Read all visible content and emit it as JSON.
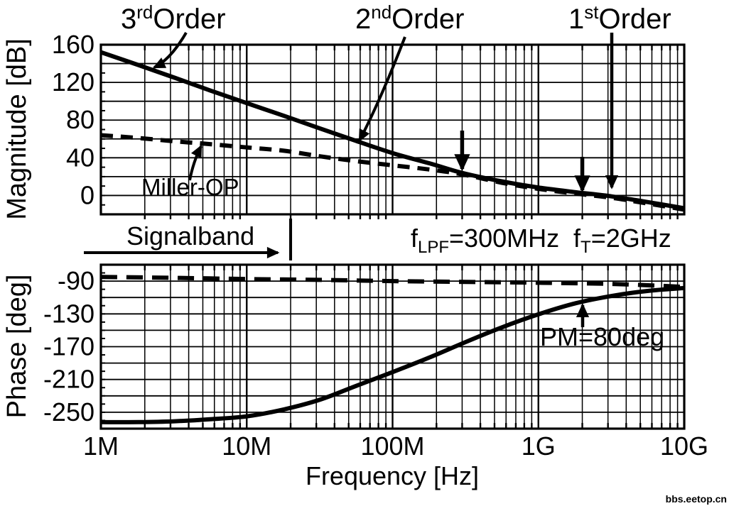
{
  "figure": {
    "background": "#ffffff",
    "ink_color": "#000000"
  },
  "chart_data": [
    {
      "type": "line",
      "name": "magnitude-plot",
      "ylabel": "Magnitude [dB]",
      "ylim": [
        -20,
        160
      ],
      "yticks": [
        160,
        120,
        80,
        40,
        0
      ],
      "y_minor_step": 20,
      "xscale": "log",
      "xlim_hz": [
        1000000.0,
        10000000000.0
      ],
      "grid": true,
      "series": [
        {
          "name": "3rd-order loop gain",
          "style": "solid",
          "points": [
            [
              1000000.0,
              152
            ],
            [
              1800000.0,
              138.5
            ],
            [
              3200000.0,
              125
            ],
            [
              5600000.0,
              111.5
            ],
            [
              10000000.0,
              98
            ],
            [
              18000000.0,
              84.5
            ],
            [
              32000000.0,
              71
            ],
            [
              56000000.0,
              58
            ],
            [
              100000000.0,
              45
            ],
            [
              180000000.0,
              34
            ],
            [
              300000000.0,
              24
            ],
            [
              560000000.0,
              15
            ],
            [
              1000000000.0,
              8.5
            ],
            [
              1800000000.0,
              3.5
            ],
            [
              3200000000.0,
              -1
            ],
            [
              5600000000.0,
              -7
            ],
            [
              10000000000.0,
              -13.5
            ]
          ]
        },
        {
          "name": "Miller-OP",
          "style": "dashed",
          "points": [
            [
              1000000.0,
              64
            ],
            [
              1800000.0,
              61
            ],
            [
              3200000.0,
              57.5
            ],
            [
              5600000.0,
              54.5
            ],
            [
              10000000.0,
              51
            ],
            [
              18000000.0,
              47.5
            ],
            [
              32000000.0,
              41.5
            ],
            [
              56000000.0,
              36.5
            ],
            [
              100000000.0,
              32
            ],
            [
              180000000.0,
              27.5
            ],
            [
              300000000.0,
              22.5
            ],
            [
              560000000.0,
              13.5
            ],
            [
              1000000000.0,
              7
            ],
            [
              1800000000.0,
              2
            ],
            [
              3200000000.0,
              -2.5
            ],
            [
              5600000000.0,
              -8.5
            ],
            [
              10000000000.0,
              -15
            ]
          ]
        }
      ]
    },
    {
      "type": "line",
      "name": "phase-plot",
      "ylabel": "Phase [deg]",
      "ylim": [
        -270,
        -70
      ],
      "yticks": [
        -90,
        -130,
        -170,
        -210,
        -250
      ],
      "y_minor_step": 20,
      "xscale": "log",
      "xlim_hz": [
        1000000.0,
        10000000000.0
      ],
      "grid": true,
      "series": [
        {
          "name": "3rd-order loop phase",
          "style": "solid",
          "points": [
            [
              1000000.0,
              -262
            ],
            [
              1800000.0,
              -262
            ],
            [
              3200000.0,
              -261
            ],
            [
              5600000.0,
              -258.5
            ],
            [
              10000000.0,
              -255
            ],
            [
              18000000.0,
              -246.5
            ],
            [
              32000000.0,
              -234.5
            ],
            [
              56000000.0,
              -218
            ],
            [
              100000000.0,
              -201
            ],
            [
              180000000.0,
              -183
            ],
            [
              320000000.0,
              -164
            ],
            [
              560000000.0,
              -146.5
            ],
            [
              1000000000.0,
              -130.5
            ],
            [
              1800000000.0,
              -117
            ],
            [
              3200000000.0,
              -108
            ],
            [
              5600000000.0,
              -102
            ],
            [
              10000000000.0,
              -98.5
            ]
          ]
        },
        {
          "name": "Miller-OP phase",
          "style": "dashed",
          "points": [
            [
              1000000.0,
              -85
            ],
            [
              3200000.0,
              -86
            ],
            [
              10000000.0,
              -87.5
            ],
            [
              32000000.0,
              -88.5
            ],
            [
              100000000.0,
              -90
            ],
            [
              320000000.0,
              -91
            ],
            [
              1000000000.0,
              -92
            ],
            [
              3200000000.0,
              -93.5
            ],
            [
              10000000000.0,
              -97
            ]
          ]
        }
      ]
    }
  ],
  "x_axis": {
    "label": "Frequency [Hz]",
    "ticks": [
      {
        "hz": 1000000.0,
        "label": "1M"
      },
      {
        "hz": 10000000.0,
        "label": "10M"
      },
      {
        "hz": 100000000.0,
        "label": "100M"
      },
      {
        "hz": 1000000000.0,
        "label": "1G"
      },
      {
        "hz": 10000000000.0,
        "label": "10G"
      }
    ]
  },
  "labels": {
    "order3": {
      "base": "3",
      "script": "rd",
      "mode": "sup",
      "rest": "Order"
    },
    "order2": {
      "base": "2",
      "script": "nd",
      "mode": "sup",
      "rest": "Order"
    },
    "order1": {
      "base": "1",
      "script": "st",
      "mode": "sup",
      "rest": "Order"
    },
    "miller_op": "Miller-OP",
    "signalband": "Signalband",
    "signalband_range_hz": [
      1000000.0,
      20000000.0
    ],
    "f_lpf": {
      "base": "f",
      "script": "LPF",
      "mode": "sub",
      "rest": "=300MHz",
      "marker_hz": 300000000.0
    },
    "f_t": {
      "base": "f",
      "script": "T",
      "mode": "sub",
      "rest": "=2GHz",
      "marker_hz": 2000000000.0
    },
    "pm": "PM=80deg"
  },
  "watermark": {
    "text": "bbs.eetop.cn",
    "color": "#6a0f2f"
  }
}
